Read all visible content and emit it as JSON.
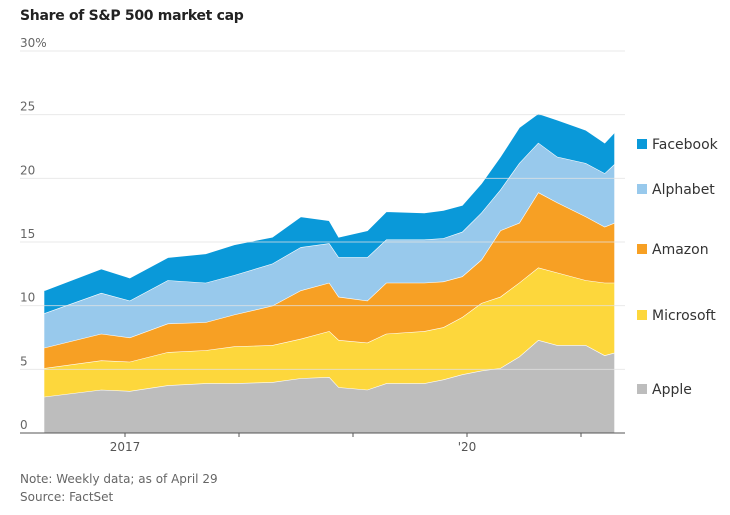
{
  "chart_data": {
    "type": "area",
    "stacked": true,
    "title": "Share of S&P 500 market cap",
    "xlabel": "",
    "ylabel": "",
    "y_unit": "%",
    "ylim": [
      0,
      30
    ],
    "yticks": [
      0,
      5,
      10,
      15,
      20,
      25,
      30
    ],
    "ytick_labels": [
      "0",
      "5",
      "10",
      "15",
      "20",
      "25",
      "30%"
    ],
    "xticks": [
      "2017",
      "2018",
      "2019",
      "2020",
      "2021"
    ],
    "xtick_labels": [
      "2017",
      "",
      "",
      "'20",
      ""
    ],
    "grid": true,
    "legend_placement": "right",
    "x": [
      "2016-04",
      "2016-10",
      "2017-01",
      "2017-05",
      "2017-09",
      "2017-12",
      "2018-04",
      "2018-07",
      "2018-10",
      "2018-11",
      "2019-02",
      "2019-04",
      "2019-08",
      "2019-10",
      "2019-12",
      "2020-02",
      "2020-04",
      "2020-06",
      "2020-08",
      "2020-10",
      "2021-01",
      "2021-03",
      "2021-04"
    ],
    "series": [
      {
        "name": "Apple",
        "color": "#bdbdbd",
        "values": [
          2.85,
          3.4,
          3.3,
          3.75,
          3.9,
          3.9,
          4.0,
          4.3,
          4.4,
          3.6,
          3.4,
          3.9,
          3.9,
          4.2,
          4.6,
          4.9,
          5.1,
          6.0,
          7.3,
          6.9,
          6.9,
          6.1,
          6.3
        ]
      },
      {
        "name": "Microsoft",
        "color": "#fdd73c",
        "values": [
          2.25,
          2.3,
          2.3,
          2.6,
          2.6,
          2.9,
          2.9,
          3.1,
          3.6,
          3.7,
          3.7,
          3.9,
          4.1,
          4.1,
          4.5,
          5.3,
          5.6,
          5.8,
          5.7,
          5.7,
          5.1,
          5.7,
          5.5
        ]
      },
      {
        "name": "Amazon",
        "color": "#f7a024",
        "values": [
          1.6,
          2.1,
          1.9,
          2.25,
          2.2,
          2.5,
          3.1,
          3.8,
          3.8,
          3.4,
          3.3,
          4.0,
          3.8,
          3.6,
          3.2,
          3.4,
          5.2,
          4.7,
          5.9,
          5.5,
          5.0,
          4.4,
          4.7
        ]
      },
      {
        "name": "Alphabet",
        "color": "#98c9ec",
        "values": [
          2.7,
          3.2,
          2.9,
          3.4,
          3.1,
          3.1,
          3.3,
          3.4,
          3.1,
          3.1,
          3.4,
          3.4,
          3.4,
          3.4,
          3.5,
          3.7,
          3.2,
          4.7,
          3.9,
          3.6,
          4.2,
          4.2,
          4.6
        ]
      },
      {
        "name": "Facebook",
        "color": "#0a99d9",
        "values": [
          1.8,
          1.9,
          1.8,
          1.8,
          2.3,
          2.4,
          2.1,
          2.4,
          1.8,
          1.6,
          2.1,
          2.2,
          2.1,
          2.2,
          2.1,
          2.3,
          2.6,
          2.8,
          2.3,
          2.9,
          2.6,
          2.4,
          2.5
        ]
      }
    ]
  },
  "notes": {
    "note": "Note: Weekly data; as of April 29",
    "source": "Source: FactSet"
  }
}
